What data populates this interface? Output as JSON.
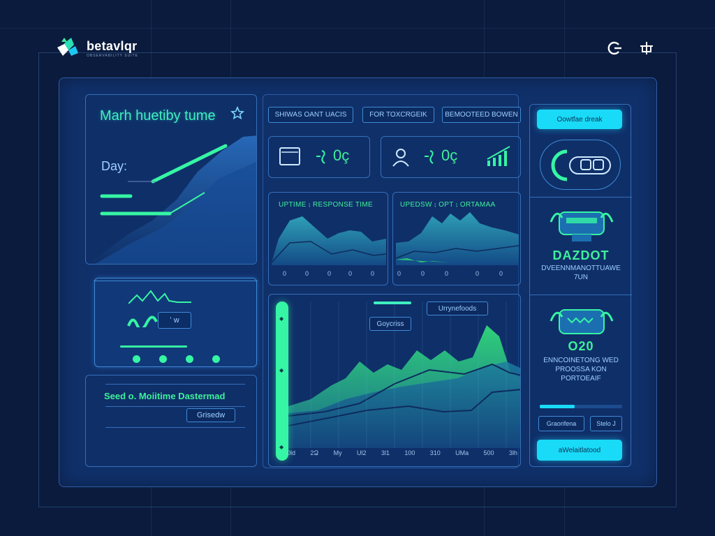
{
  "app": {
    "name": "betavlqr",
    "subtitle": "OBSERVABILITY SUITE",
    "icons": [
      "logo-icon",
      "refresh-icon",
      "network-icon"
    ]
  },
  "left": {
    "hero_title": "Marh huetiby tume",
    "hero_label": "Day:",
    "pulse_label": "ʻ w",
    "summary_title": "Seed o. Moiitime Dastermad",
    "summary_button": "Grisedw"
  },
  "filters": [
    "SHIWAS OANT UACIS",
    "FOR TOXCRGEIK",
    "BEMOOTEED BOWEN"
  ],
  "stats": {
    "card1_value": "0ç",
    "card2_value": "0ç"
  },
  "mini_charts": [
    {
      "title": "UPTIME ⨟ RESPONSE TIME",
      "ticks": [
        "0",
        "0",
        "0",
        "0",
        "0"
      ]
    },
    {
      "title": "UPEDSW ⨟ OPT ⨟ ORTAMAA",
      "ticks": [
        "0",
        "0",
        "0",
        "0",
        "0"
      ]
    }
  ],
  "main_chart": {
    "legend_top": "Urrynefoods",
    "legend_left": "Goycriss",
    "x_ticks": [
      "0ld",
      "2Ձ",
      "My",
      "Ul2",
      "3l1",
      "100",
      "310",
      "UMa",
      "500",
      "3lh"
    ]
  },
  "right": {
    "top_button": "Oowtfae dreak",
    "card1_title": "DAZDOT",
    "card1_desc": "DVEENNMANOTTUAWE 7UN",
    "card2_title": "O20",
    "card2_desc": "ENNCOINETONG WED PROOSSA KON PORTOEAIF",
    "tab_left": "Graorifena",
    "tab_right": "Stelo J",
    "bottom_button": "aWelaitlatood"
  },
  "colors": {
    "bg": "#0b1b3d",
    "panel": "#10306a",
    "accent_green": "#3ff09a",
    "accent_cyan": "#19dbf7"
  }
}
